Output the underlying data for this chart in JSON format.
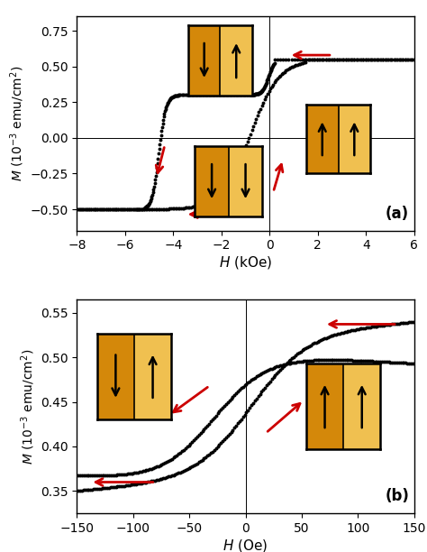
{
  "panel_a": {
    "xlabel": "H (kOe)",
    "xlim": [
      -8,
      6
    ],
    "ylim": [
      -0.65,
      0.85
    ],
    "xticks": [
      -8,
      -6,
      -4,
      -2,
      0,
      2,
      4,
      6
    ],
    "yticks": [
      -0.5,
      -0.25,
      0.0,
      0.25,
      0.5,
      0.75
    ],
    "label": "(a)"
  },
  "panel_b": {
    "xlabel": "H (Oe)",
    "xlim": [
      -150,
      150
    ],
    "ylim": [
      0.325,
      0.565
    ],
    "xticks": [
      -150,
      -100,
      -50,
      0,
      50,
      100,
      150
    ],
    "yticks": [
      0.35,
      0.4,
      0.45,
      0.5,
      0.55
    ],
    "label": "(b)"
  },
  "dot_color": "#000000",
  "arrow_color": "#cc0000",
  "bg_color": "#ffffff",
  "icon_left_color": "#D4880A",
  "icon_right_color": "#F0C050",
  "icon_mid_color": "#E8A020"
}
